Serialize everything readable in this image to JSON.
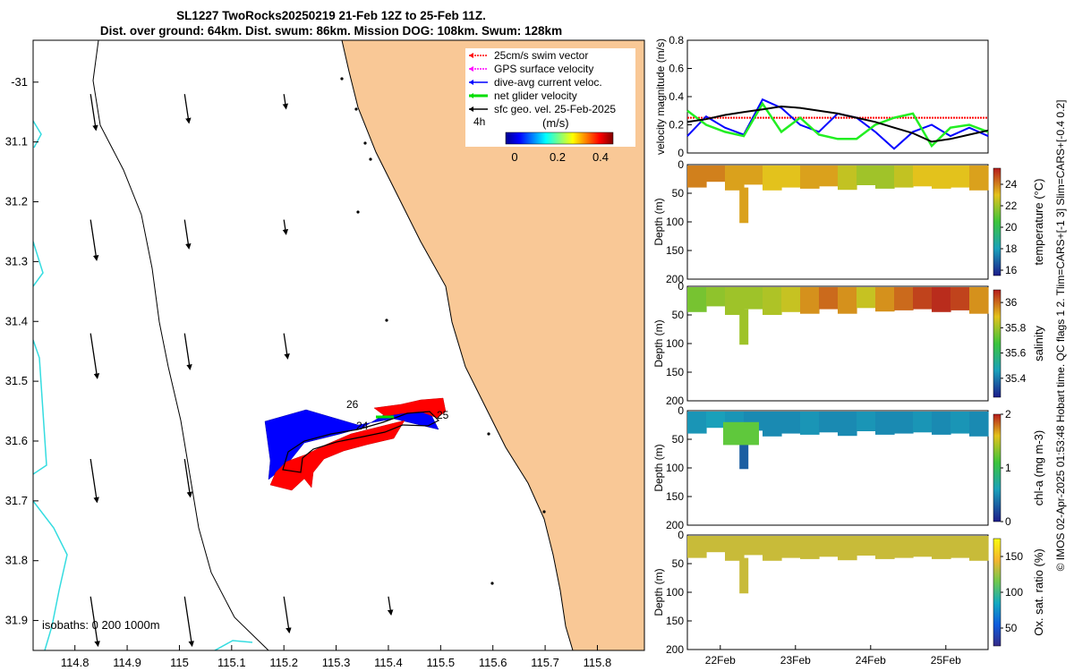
{
  "header": {
    "title_line1": "SL1227 TwoRocks20250219 21-Feb 12Z to 25-Feb 11Z.",
    "title_line2": "Dist. over ground: 64km. Dist. swum: 86km. Mission DOG: 108km. Swum: 128km"
  },
  "credit": "© IMOS 02-Apr-2025 01:53:48 Hobart time. QC flags 1  2. Tlim=CARS+[-1 3] Slim=CARS+[-0.4 0.2]",
  "chart_data": [
    {
      "type": "map",
      "x_ticks": [
        "114.8",
        "114.9",
        "115",
        "115.1",
        "115.2",
        "115.3",
        "115.4",
        "115.5",
        "115.6",
        "115.7",
        "115.8"
      ],
      "y_ticks": [
        "-31",
        "31.1",
        "31.2",
        "31.3",
        "31.4",
        "31.5",
        "31.6",
        "31.7",
        "31.8",
        "31.9"
      ],
      "xlim": [
        114.72,
        115.89
      ],
      "ylim": [
        -31.95,
        -30.93
      ],
      "legend": [
        {
          "label": "25cm/s swim vector",
          "color": "#ff0000"
        },
        {
          "label": "GPS surface velocity",
          "color": "#ff00ff"
        },
        {
          "label": "dive-avg current veloc.",
          "color": "#0000ff"
        },
        {
          "label": "net glider velocity",
          "color": "#00dd00"
        },
        {
          "label": "sfc geo. vel. 25-Feb-2025",
          "color": "#000000"
        }
      ],
      "colorbar": {
        "label": "(m/s)",
        "ticks": [
          "0",
          "0.2",
          "0.4"
        ],
        "range": [
          0,
          0.5
        ]
      },
      "annotations": {
        "time_label": "4h",
        "day_labels": [
          "26",
          "24",
          "25"
        ]
      },
      "isobaths_label": "isobaths: 0   200  1000m",
      "land_color": "#f9c896"
    },
    {
      "type": "line",
      "ylabel": "velocity magnitude (m/s)",
      "ylim": [
        0,
        0.8
      ],
      "y_ticks": [
        "0",
        "0.2",
        "0.4",
        "0.6",
        "0.8"
      ],
      "x": [
        0,
        0.25,
        0.5,
        0.75,
        1,
        1.25,
        1.5,
        1.75,
        2,
        2.25,
        2.5,
        2.75,
        3,
        3.25,
        3.5,
        3.75,
        4
      ],
      "series": [
        {
          "name": "swim vector",
          "color": "#ff0000",
          "values": [
            0.25,
            0.25,
            0.25,
            0.25,
            0.25,
            0.25,
            0.25,
            0.25,
            0.25,
            0.25,
            0.25,
            0.25,
            0.25,
            0.25,
            0.25,
            0.25,
            0.25
          ]
        },
        {
          "name": "dive-avg current",
          "color": "#0000ff",
          "values": [
            0.12,
            0.26,
            0.18,
            0.13,
            0.38,
            0.32,
            0.2,
            0.15,
            0.28,
            0.25,
            0.15,
            0.03,
            0.15,
            0.2,
            0.12,
            0.18,
            0.12
          ]
        },
        {
          "name": "net glider velocity",
          "color": "#22ee22",
          "values": [
            0.3,
            0.2,
            0.15,
            0.12,
            0.35,
            0.15,
            0.25,
            0.13,
            0.1,
            0.1,
            0.2,
            0.25,
            0.28,
            0.05,
            0.18,
            0.2,
            0.15
          ]
        },
        {
          "name": "sfc geo. vel.",
          "color": "#000000",
          "values": [
            0.22,
            0.24,
            0.27,
            0.29,
            0.31,
            0.33,
            0.32,
            0.3,
            0.28,
            0.25,
            0.22,
            0.18,
            0.14,
            0.08,
            0.1,
            0.13,
            0.16
          ]
        }
      ]
    },
    {
      "type": "heatmap",
      "variable": "temperature (°C)",
      "ylabel": "Depth (m)",
      "colorbar_ticks": [
        "16",
        "18",
        "20",
        "22",
        "24"
      ],
      "crange": [
        15.5,
        25.5
      ],
      "depth_ticks": [
        "0",
        "50",
        "100",
        "150",
        "200"
      ],
      "x_ticks": [
        "22Feb",
        "23Feb",
        "24Feb",
        "25Feb"
      ],
      "values": [
        24,
        24,
        23.5,
        23.5,
        23,
        23,
        23.5,
        23.5,
        22.5,
        22,
        22,
        22.5,
        23,
        23,
        23,
        23.5
      ],
      "profile_depth_m": [
        40,
        30,
        45,
        35,
        45,
        40,
        42,
        38,
        44,
        36,
        42,
        40,
        38,
        42,
        40,
        45
      ]
    },
    {
      "type": "heatmap",
      "variable": "salinity",
      "ylabel": "Depth (m)",
      "colorbar_ticks": [
        "35.4",
        "35.6",
        "35.8",
        "36"
      ],
      "crange": [
        35.25,
        36.1
      ],
      "depth_ticks": [
        "0",
        "50",
        "100",
        "150",
        "200"
      ],
      "x_ticks": [
        "22Feb",
        "23Feb",
        "24Feb",
        "25Feb"
      ],
      "values": [
        35.75,
        35.78,
        35.8,
        35.8,
        35.82,
        35.85,
        35.95,
        36,
        35.95,
        35.85,
        35.95,
        36,
        36.05,
        36.08,
        36.05,
        35.95
      ],
      "profile_depth_m": [
        45,
        35,
        50,
        40,
        50,
        45,
        48,
        40,
        48,
        38,
        44,
        42,
        40,
        45,
        42,
        48
      ]
    },
    {
      "type": "heatmap",
      "variable": "chl-a (mg m-3)",
      "ylabel": "Depth (m)",
      "colorbar_ticks": [
        "0",
        "1",
        "2"
      ],
      "crange": [
        0,
        2
      ],
      "depth_ticks": [
        "0",
        "50",
        "100",
        "150",
        "200"
      ],
      "x_ticks": [
        "22Feb",
        "23Feb",
        "24Feb",
        "25Feb"
      ],
      "values": [
        0.55,
        0.6,
        0.55,
        0.5,
        0.5,
        0.5,
        0.55,
        0.5,
        0.5,
        0.55,
        0.5,
        0.5,
        0.55,
        0.5,
        0.55,
        0.5
      ],
      "profile_depth_m": [
        40,
        30,
        45,
        35,
        45,
        40,
        42,
        38,
        44,
        36,
        42,
        40,
        38,
        42,
        40,
        45
      ]
    },
    {
      "type": "heatmap",
      "variable": "Ox. sat. ratio (%)",
      "ylabel": "Depth (m)",
      "colorbar_ticks": [
        "50",
        "100",
        "150"
      ],
      "crange": [
        25,
        175
      ],
      "depth_ticks": [
        "0",
        "50",
        "100",
        "150",
        "200"
      ],
      "x_ticks": [
        "22Feb",
        "23Feb",
        "24Feb",
        "25Feb"
      ],
      "values": [
        135,
        135,
        135,
        135,
        135,
        135,
        135,
        135,
        135,
        135,
        135,
        135,
        135,
        135,
        135,
        135
      ],
      "profile_depth_m": [
        40,
        30,
        45,
        35,
        45,
        40,
        42,
        38,
        44,
        36,
        42,
        40,
        38,
        42,
        40,
        45
      ]
    }
  ]
}
